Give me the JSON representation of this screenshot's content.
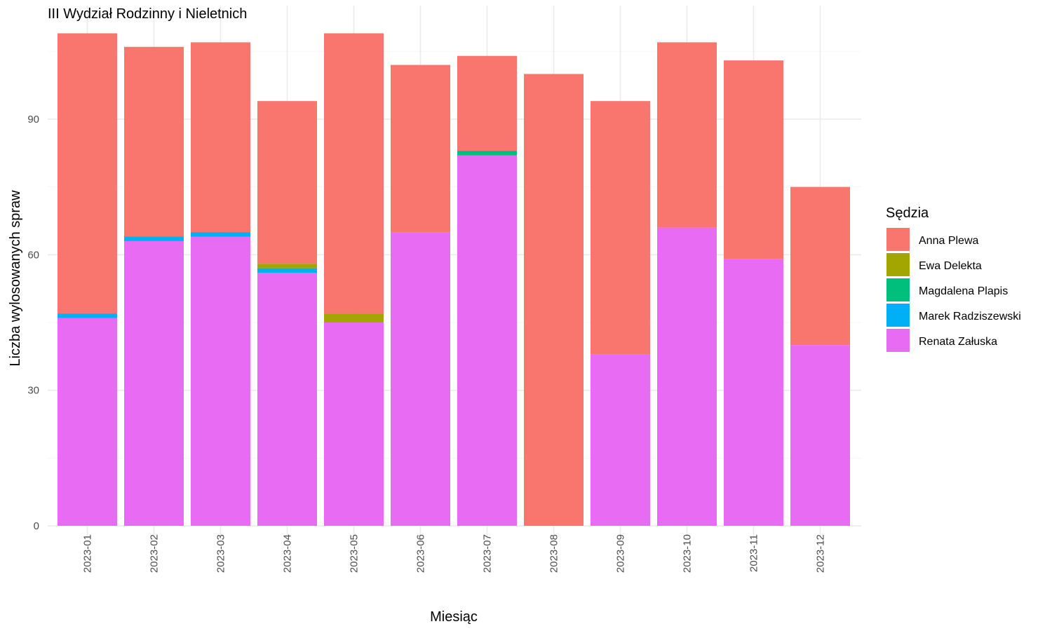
{
  "chart_data": {
    "type": "bar",
    "stacked": true,
    "title": "III Wydział Rodzinny i Nieletnich",
    "xlabel": "Miesiąc",
    "ylabel": "Liczba wylosowanych spraw",
    "ylim": [
      0,
      110
    ],
    "yticks": [
      0,
      30,
      60,
      90
    ],
    "grid": true,
    "legend": {
      "title": "Sędzia",
      "position": "right"
    },
    "categories": [
      "2023-01",
      "2023-02",
      "2023-03",
      "2023-04",
      "2023-05",
      "2023-06",
      "2023-07",
      "2023-08",
      "2023-09",
      "2023-10",
      "2023-11",
      "2023-12"
    ],
    "series": [
      {
        "name": "Renata Załuska",
        "color": "#E76BF3",
        "values": [
          46,
          63,
          64,
          56,
          45,
          65,
          82,
          0,
          38,
          66,
          59,
          40
        ]
      },
      {
        "name": "Marek Radziszewski",
        "color": "#00B0F6",
        "values": [
          1,
          1,
          1,
          1,
          0,
          0,
          0,
          0,
          0,
          0,
          0,
          0
        ]
      },
      {
        "name": "Magdalena Plapis",
        "color": "#00BF7D",
        "values": [
          0,
          0,
          0,
          0,
          0,
          0,
          1,
          0,
          0,
          0,
          0,
          0
        ]
      },
      {
        "name": "Ewa Delekta",
        "color": "#A3A500",
        "values": [
          0,
          0,
          0,
          1,
          2,
          0,
          0,
          0,
          0,
          0,
          0,
          0
        ]
      },
      {
        "name": "Anna Plewa",
        "color": "#F8766D",
        "values": [
          62,
          42,
          42,
          36,
          62,
          37,
          21,
          100,
          56,
          41,
          44,
          35
        ]
      }
    ],
    "legend_order": [
      "Anna Plewa",
      "Ewa Delekta",
      "Magdalena Plapis",
      "Marek Radziszewski",
      "Renata Załuska"
    ]
  }
}
